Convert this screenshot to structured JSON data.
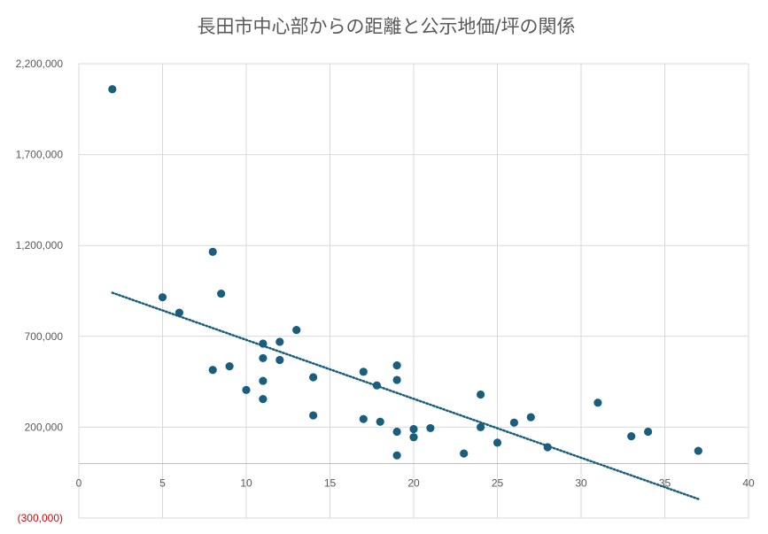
{
  "chart_data": {
    "type": "scatter",
    "title": "長田市中心部からの距離と公示地価/坪の関係",
    "xlabel": "",
    "ylabel": "",
    "xlim": [
      0,
      40
    ],
    "ylim": [
      -300000,
      2200000
    ],
    "x_ticks": [
      0,
      5,
      10,
      15,
      20,
      25,
      30,
      35,
      40
    ],
    "y_ticks": [
      -300000,
      200000,
      700000,
      1200000,
      1700000,
      2200000
    ],
    "x_tick_labels": [
      "0",
      "5",
      "10",
      "15",
      "20",
      "25",
      "30",
      "35",
      "40"
    ],
    "y_tick_labels": [
      "(300,000)",
      "200,000",
      "700,000",
      "1,200,000",
      "1,700,000",
      "2,200,000"
    ],
    "grid": true,
    "legend": "none",
    "colors": {
      "points": "#1a5e7d",
      "trendline": "#1a5e7d",
      "negative_label": "#e00000",
      "grid": "#d9d9d9",
      "text": "#595959"
    },
    "series": [
      {
        "points": [
          [
            2,
            2060000
          ],
          [
            5,
            915000
          ],
          [
            6,
            830000
          ],
          [
            8,
            1165000
          ],
          [
            8,
            515000
          ],
          [
            8.5,
            935000
          ],
          [
            9,
            535000
          ],
          [
            10,
            405000
          ],
          [
            11,
            660000
          ],
          [
            11,
            580000
          ],
          [
            11,
            455000
          ],
          [
            11,
            355000
          ],
          [
            12,
            670000
          ],
          [
            12,
            570000
          ],
          [
            13,
            735000
          ],
          [
            14,
            475000
          ],
          [
            14,
            265000
          ],
          [
            17,
            505000
          ],
          [
            17,
            245000
          ],
          [
            17.8,
            430000
          ],
          [
            18,
            230000
          ],
          [
            19,
            540000
          ],
          [
            19,
            460000
          ],
          [
            19,
            175000
          ],
          [
            19,
            45000
          ],
          [
            20,
            190000
          ],
          [
            20,
            145000
          ],
          [
            21,
            195000
          ],
          [
            23,
            55000
          ],
          [
            24,
            380000
          ],
          [
            24,
            200000
          ],
          [
            25,
            115000
          ],
          [
            26,
            225000
          ],
          [
            27,
            255000
          ],
          [
            28,
            90000
          ],
          [
            31,
            335000
          ],
          [
            33,
            150000
          ],
          [
            34,
            175000
          ],
          [
            37,
            70000
          ]
        ]
      }
    ],
    "trendline": {
      "type": "linear",
      "style": "dotted",
      "start": [
        2,
        940000
      ],
      "end": [
        37,
        -195000
      ]
    }
  }
}
